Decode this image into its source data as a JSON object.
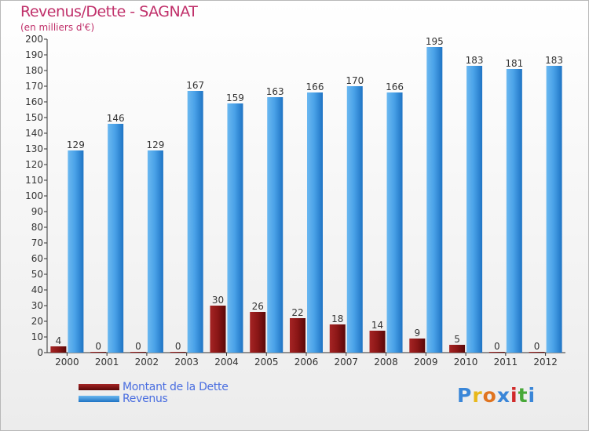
{
  "title": "Revenus/Dette - SAGNAT",
  "subtitle": "(en milliers d'€)",
  "logo": {
    "text": "Proxiti",
    "colors": [
      "#3a86d8",
      "#e8b81a",
      "#e07420",
      "#3a86d8",
      "#d02a2a",
      "#48a838",
      "#3a86d8"
    ]
  },
  "colors": {
    "dette": "#7a1010",
    "revenus": "#2e86d6",
    "title": "#c0306a",
    "legend_text": "#4a6ee0"
  },
  "chart_data": {
    "type": "bar",
    "title": "Revenus/Dette - SAGNAT",
    "subtitle": "(en milliers d'€)",
    "categories": [
      "2000",
      "2001",
      "2002",
      "2003",
      "2004",
      "2005",
      "2006",
      "2007",
      "2008",
      "2009",
      "2010",
      "2011",
      "2012"
    ],
    "series": [
      {
        "name": "Montant de la Dette",
        "values": [
          4,
          0,
          0,
          0,
          30,
          26,
          22,
          18,
          14,
          9,
          5,
          0,
          0
        ]
      },
      {
        "name": "Revenus",
        "values": [
          129,
          146,
          129,
          167,
          159,
          163,
          166,
          170,
          166,
          195,
          183,
          181,
          183
        ]
      }
    ],
    "ylim": [
      0,
      200
    ],
    "ytick_step": 10,
    "grid": false,
    "legend": "bottom-left"
  }
}
